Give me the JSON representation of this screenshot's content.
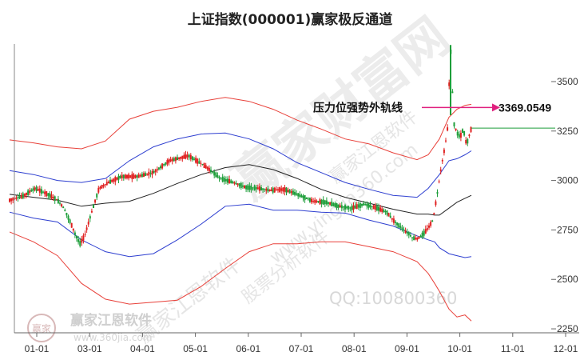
{
  "chart_data": {
    "type": "line",
    "title": "上证指数(000001)赢家极反通道",
    "ylim": [
      2230,
      3690
    ],
    "yticks": [
      2250,
      2500,
      2750,
      3000,
      3250,
      3500
    ],
    "xticks": [
      "01-01",
      "03-01",
      "04-01",
      "05-01",
      "06-01",
      "07-01",
      "08-01",
      "09-01",
      "10-01",
      "11-01",
      "12-01"
    ],
    "grid": false,
    "annotation": {
      "label": "压力位强势外轨线",
      "value": "3369.0549",
      "y": 3369.05
    },
    "last_close_line": 3265,
    "series": [
      {
        "role": "outer_upper_band",
        "color": "#e8413a",
        "x": [
          0,
          15,
          30,
          45,
          60,
          75,
          90,
          105,
          120,
          135,
          150,
          165,
          180,
          195,
          210,
          225,
          240,
          255,
          262,
          269,
          275,
          280,
          285,
          289
        ],
        "y": [
          3205,
          3190,
          3170,
          3160,
          3200,
          3310,
          3350,
          3370,
          3400,
          3420,
          3400,
          3360,
          3305,
          3260,
          3210,
          3185,
          3140,
          3105,
          3130,
          3210,
          3320,
          3360,
          3380,
          3385
        ]
      },
      {
        "role": "inner_upper_band",
        "color": "#2e3fd0",
        "x": [
          0,
          15,
          30,
          45,
          60,
          75,
          90,
          105,
          120,
          135,
          150,
          165,
          180,
          195,
          210,
          225,
          240,
          255,
          262,
          269,
          275,
          280,
          285,
          289
        ],
        "y": [
          3050,
          3030,
          3000,
          2990,
          3010,
          3100,
          3170,
          3210,
          3235,
          3240,
          3210,
          3160,
          3090,
          3040,
          2990,
          2955,
          2925,
          2915,
          2960,
          3030,
          3100,
          3110,
          3130,
          3150
        ]
      },
      {
        "role": "middle_line",
        "color": "#222222",
        "x": [
          0,
          15,
          30,
          45,
          60,
          75,
          90,
          105,
          120,
          135,
          150,
          165,
          180,
          195,
          210,
          225,
          240,
          255,
          262,
          266,
          269,
          275,
          280,
          285,
          289
        ],
        "y": [
          2930,
          2915,
          2900,
          2870,
          2885,
          2895,
          2935,
          2985,
          3030,
          3065,
          3080,
          3055,
          3010,
          2955,
          2915,
          2885,
          2855,
          2830,
          2830,
          2825,
          2825,
          2860,
          2890,
          2910,
          2925
        ]
      },
      {
        "role": "inner_lower_band",
        "color": "#2e3fd0",
        "x": [
          0,
          15,
          30,
          45,
          60,
          75,
          90,
          105,
          120,
          135,
          150,
          165,
          180,
          195,
          210,
          225,
          240,
          255,
          262,
          266,
          269,
          275,
          280,
          285,
          289
        ],
        "y": [
          2840,
          2810,
          2790,
          2700,
          2640,
          2615,
          2630,
          2700,
          2780,
          2870,
          2880,
          2850,
          2850,
          2840,
          2835,
          2800,
          2770,
          2720,
          2700,
          2690,
          2660,
          2630,
          2620,
          2610,
          2615
        ]
      },
      {
        "role": "outer_lower_band",
        "color": "#e8413a",
        "x": [
          0,
          15,
          30,
          45,
          60,
          75,
          90,
          105,
          120,
          135,
          150,
          165,
          180,
          195,
          210,
          225,
          240,
          255,
          262,
          266,
          269,
          275,
          280,
          285,
          289
        ],
        "y": [
          2740,
          2690,
          2620,
          2480,
          2400,
          2375,
          2385,
          2395,
          2465,
          2555,
          2640,
          2680,
          2680,
          2690,
          2690,
          2665,
          2640,
          2590,
          2530,
          2480,
          2440,
          2350,
          2310,
          2320,
          2290
        ]
      },
      {
        "role": "price_path",
        "color": "#d42020",
        "x": [
          0,
          8,
          16,
          24,
          30,
          34,
          38,
          41,
          44,
          47,
          51,
          56,
          62,
          70,
          80,
          90,
          100,
          112,
          122,
          132,
          140,
          148,
          156,
          163,
          172,
          180,
          190,
          198,
          206,
          214,
          222,
          230,
          236,
          240,
          244,
          248,
          250,
          252,
          255,
          257,
          259,
          262,
          265,
          268,
          270,
          272,
          274,
          276,
          278,
          280,
          282,
          284,
          286,
          289
        ],
        "y": [
          2900,
          2920,
          2960,
          2930,
          2900,
          2860,
          2790,
          2730,
          2680,
          2720,
          2830,
          2960,
          2990,
          3020,
          3020,
          3040,
          3100,
          3125,
          3075,
          3010,
          2990,
          2965,
          2960,
          2950,
          2955,
          2930,
          2895,
          2890,
          2870,
          2860,
          2880,
          2860,
          2840,
          2800,
          2770,
          2740,
          2730,
          2710,
          2705,
          2715,
          2730,
          2760,
          2800,
          2950,
          3060,
          3150,
          3250,
          3680,
          3290,
          3240,
          3220,
          3260,
          3180,
          3265
        ]
      }
    ]
  },
  "watermarks": {
    "big": "赢家财富网",
    "diag1": "赢家江恩软件",
    "diag2": "股票分析软件",
    "diag3": "www.yingjia360.com",
    "diag4": "赢家江恩软件",
    "qq": "QQ:100800360",
    "logo_text": "赢家江恩软件",
    "logo_url": "www.360jia.com",
    "seal": "赢家"
  }
}
